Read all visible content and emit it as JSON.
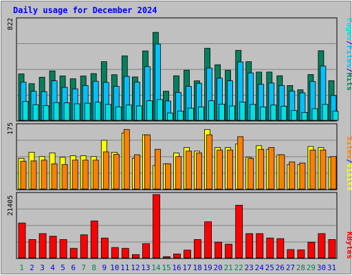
{
  "colors": {
    "background": "#c0c0c0",
    "panel": "#c0c0c0",
    "gridline": "#808080",
    "title": "#0000ff",
    "hits": "#00805c",
    "files": "#00c0ff",
    "pages": "#00e0e0",
    "visits": "#ffff00",
    "sites": "#ff8000",
    "kbytes": "#ff0000",
    "weekend_label": "#00805c",
    "weekday_label": "#0000ff"
  },
  "chart_data": [
    {
      "type": "bar",
      "title": "Daily usage for December 2024",
      "ymax_label": "822",
      "ylim": [
        0,
        822
      ],
      "legend": [
        {
          "text": "Hits",
          "color_key": "hits"
        },
        {
          "text": "/",
          "color_key": "weekday_label"
        },
        {
          "text": "Files",
          "color_key": "files"
        },
        {
          "text": "/",
          "color_key": "weekday_label"
        },
        {
          "text": "Pages",
          "color_key": "pages"
        }
      ],
      "categories": [
        "1",
        "2",
        "3",
        "4",
        "5",
        "6",
        "7",
        "8",
        "9",
        "10",
        "11",
        "12",
        "13",
        "14",
        "15",
        "16",
        "17",
        "18",
        "19",
        "20",
        "21",
        "22",
        "23",
        "24",
        "25",
        "26",
        "27",
        "28",
        "29",
        "30",
        "31"
      ],
      "series": [
        {
          "name": "Hits",
          "color_key": "hits",
          "values": [
            380,
            300,
            353,
            405,
            363,
            340,
            363,
            383,
            480,
            373,
            528,
            355,
            568,
            720,
            238,
            365,
            410,
            323,
            590,
            455,
            410,
            573,
            480,
            395,
            395,
            365,
            285,
            250,
            375,
            570,
            325
          ]
        },
        {
          "name": "Files",
          "color_key": "files",
          "values": [
            313,
            238,
            235,
            323,
            270,
            258,
            285,
            320,
            310,
            278,
            360,
            313,
            440,
            625,
            158,
            228,
            278,
            303,
            428,
            345,
            323,
            478,
            388,
            295,
            305,
            285,
            240,
            225,
            318,
            445,
            203
          ]
        },
        {
          "name": "Pages",
          "color_key": "pages",
          "values": [
            155,
            128,
            120,
            145,
            143,
            135,
            140,
            148,
            130,
            110,
            125,
            118,
            160,
            170,
            60,
            75,
            100,
            110,
            160,
            133,
            118,
            150,
            130,
            110,
            125,
            115,
            80,
            65,
            95,
            130,
            75
          ]
        }
      ]
    },
    {
      "type": "bar",
      "ymax_label": "175",
      "ylim": [
        0,
        175
      ],
      "legend": [
        {
          "text": "Visits",
          "color_key": "visits"
        },
        {
          "text": "/",
          "color_key": "weekday_label"
        },
        {
          "text": "Sites",
          "color_key": "sites"
        }
      ],
      "categories": [
        "1",
        "2",
        "3",
        "4",
        "5",
        "6",
        "7",
        "8",
        "9",
        "10",
        "11",
        "12",
        "13",
        "14",
        "15",
        "16",
        "17",
        "18",
        "19",
        "20",
        "21",
        "22",
        "23",
        "24",
        "25",
        "26",
        "27",
        "28",
        "29",
        "30",
        "31"
      ],
      "series": [
        {
          "name": "Visits",
          "color_key": "visits",
          "values": [
            85,
            102,
            90,
            100,
            88,
            92,
            92,
            90,
            135,
            102,
            155,
            85,
            150,
            65,
            70,
            100,
            115,
            105,
            165,
            115,
            115,
            125,
            88,
            120,
            110,
            95,
            68,
            68,
            118,
            115,
            88
          ]
        },
        {
          "name": "Sites",
          "color_key": "sites",
          "values": [
            77,
            78,
            80,
            70,
            68,
            80,
            80,
            80,
            103,
            96,
            165,
            95,
            150,
            110,
            70,
            90,
            105,
            100,
            150,
            108,
            108,
            145,
            85,
            110,
            115,
            95,
            75,
            72,
            108,
            108,
            90
          ]
        }
      ]
    },
    {
      "type": "bar",
      "ymax_label": "21405",
      "ylim": [
        0,
        21405
      ],
      "legend": [
        {
          "text": "KBytes",
          "color_key": "kbytes"
        }
      ],
      "categories": [
        "1",
        "2",
        "3",
        "4",
        "5",
        "6",
        "7",
        "8",
        "9",
        "10",
        "11",
        "12",
        "13",
        "14",
        "15",
        "16",
        "17",
        "18",
        "19",
        "20",
        "21",
        "22",
        "23",
        "24",
        "25",
        "26",
        "27",
        "28",
        "29",
        "30",
        "31"
      ],
      "series": [
        {
          "name": "KBytes",
          "color_key": "kbytes",
          "values": [
            11800,
            6200,
            8200,
            7300,
            6200,
            3200,
            7800,
            12500,
            6700,
            3500,
            3200,
            1100,
            4800,
            22100,
            400,
            1300,
            2600,
            6200,
            12200,
            5300,
            4600,
            17800,
            8200,
            8200,
            6700,
            6500,
            2800,
            2700,
            5300,
            8200,
            6200
          ]
        }
      ]
    }
  ],
  "weekend_days": [
    "1",
    "7",
    "8",
    "14",
    "15",
    "21",
    "22",
    "28",
    "29"
  ]
}
